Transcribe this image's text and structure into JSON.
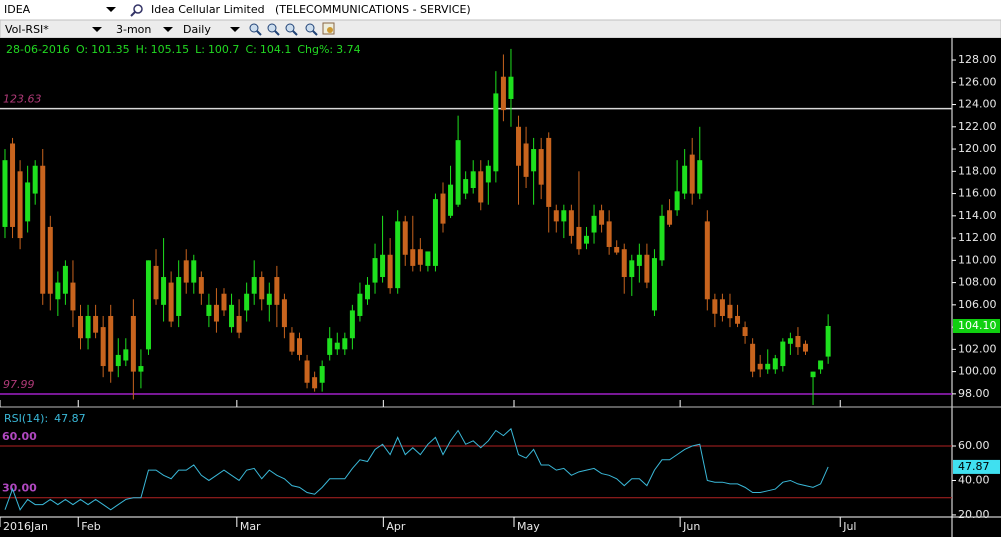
{
  "toolbar": {
    "symbol": "IDEA",
    "company": "Idea Cellular Limited",
    "sector": "(TELECOMMUNICATIONS - SERVICE)",
    "study": "Vol-RSI*",
    "range": "3-mon",
    "interval": "Daily"
  },
  "chart_data": [
    {
      "type": "candlestick",
      "header": {
        "date": "28-06-2016",
        "fields": [
          {
            "label": "O:",
            "value": 101.35
          },
          {
            "label": "H:",
            "value": 105.15
          },
          {
            "label": "L:",
            "value": 100.7
          },
          {
            "label": "C:",
            "value": 104.1
          },
          {
            "label": "Chg%:",
            "value": 3.74
          }
        ]
      },
      "open": [
        113,
        120.5,
        118,
        113.5,
        116,
        118.5,
        113,
        106.5,
        107,
        108,
        105,
        103,
        105,
        104,
        105,
        100.5,
        101,
        105,
        100,
        102,
        109.5,
        106,
        108,
        105,
        110,
        108,
        108.5,
        105,
        106,
        107,
        104,
        105,
        105.5,
        107,
        108.5,
        106,
        108.5,
        106.5,
        103.5,
        103,
        101,
        99.5,
        99,
        101.5,
        102,
        102,
        103,
        105,
        106.5,
        108,
        108.5,
        110.5,
        107.5,
        113.5,
        111,
        111,
        109.5,
        109.5,
        116,
        114,
        115,
        116,
        116.5,
        118,
        117,
        118,
        126.5,
        124.5,
        122,
        120.5,
        118,
        120,
        121,
        114.5,
        113.5,
        114.5,
        113,
        111.5,
        112.5,
        114.5,
        113.5,
        111.2,
        111,
        108.5,
        109.5,
        110.5,
        105.5,
        110,
        114.5,
        114.5,
        116,
        119.5,
        116,
        113.5,
        106.5,
        106.5,
        106,
        105,
        104,
        102.5,
        100.7,
        100.2,
        100.2,
        100.5,
        102.5,
        103.2,
        102.5,
        99.5,
        100.2,
        101.35
      ],
      "high": [
        120,
        121,
        119,
        118.5,
        119,
        120,
        114,
        109,
        110,
        110,
        106,
        106,
        106,
        105,
        106,
        103,
        103,
        106.5,
        102,
        110,
        111,
        112,
        109,
        110,
        111,
        110.5,
        109,
        107,
        107.5,
        107.5,
        107,
        106.5,
        108,
        110,
        109,
        108,
        109.5,
        107,
        104,
        103.5,
        101.5,
        100,
        101,
        104,
        103.5,
        103.5,
        106,
        108,
        108.5,
        111.5,
        114,
        112,
        114.5,
        114,
        114,
        112,
        110.5,
        116,
        117,
        118.5,
        123,
        118,
        119,
        119,
        119,
        127,
        128.5,
        129,
        123,
        122,
        121,
        121,
        121.5,
        115,
        115,
        115,
        118,
        113,
        115,
        115,
        114.5,
        111.8,
        111.5,
        110.5,
        111.5,
        111.5,
        111,
        115,
        115.5,
        119,
        120,
        121,
        122,
        114.5,
        107,
        107,
        107,
        106,
        104.5,
        103,
        101.5,
        102,
        101.5,
        103,
        103.5,
        104,
        102.8,
        100,
        101,
        105.15
      ],
      "low": [
        112,
        112,
        111,
        112.5,
        115,
        106,
        105.5,
        105,
        106,
        104,
        102,
        102,
        103,
        99.5,
        99,
        99.5,
        100.5,
        97.5,
        98.5,
        101.5,
        106,
        104.5,
        104,
        104,
        107,
        107,
        106,
        104,
        103.5,
        105,
        103.5,
        103,
        104.5,
        106,
        105.5,
        104.5,
        104,
        103,
        101.5,
        101,
        98.5,
        98.2,
        98.2,
        101,
        101.5,
        101.5,
        102,
        104.5,
        106,
        107,
        108,
        107,
        107,
        109.5,
        109,
        109,
        109,
        109,
        112.5,
        113.8,
        114.8,
        115.5,
        116,
        114.5,
        115,
        117,
        122.5,
        122,
        115,
        116.5,
        115,
        115.5,
        112.5,
        112.5,
        112,
        111.5,
        110.5,
        111,
        111.5,
        112.5,
        110.5,
        110.5,
        107,
        106.8,
        108,
        107.5,
        105,
        109.5,
        113,
        114,
        115.5,
        115,
        115.5,
        105.5,
        104,
        104.5,
        104,
        104,
        102.5,
        99.5,
        99.5,
        99.8,
        99.8,
        100,
        101.5,
        101.5,
        101.5,
        97,
        99.8,
        100.7
      ],
      "close": [
        119,
        113,
        112,
        117,
        118.5,
        107,
        107,
        108,
        109.5,
        105.5,
        103,
        105,
        103.5,
        100.5,
        100,
        101.5,
        102,
        100,
        100.5,
        110,
        106.5,
        108.5,
        104.5,
        108.5,
        108,
        110,
        107,
        106,
        104.5,
        105.5,
        106,
        103.5,
        107,
        108.5,
        106.5,
        107,
        106,
        104,
        101.8,
        101.5,
        99,
        98.5,
        100.5,
        103,
        102.6,
        103,
        105.5,
        107,
        107.8,
        110.2,
        110.5,
        107.5,
        113.5,
        110.5,
        109.5,
        109.6,
        110.8,
        115.5,
        113.3,
        116.8,
        120.8,
        117.3,
        118,
        115.2,
        118.5,
        125,
        123.5,
        126.5,
        118.5,
        117.5,
        120,
        116.8,
        114.8,
        113.5,
        114.5,
        112.2,
        111,
        112.2,
        114,
        113.2,
        111.2,
        110.7,
        108.5,
        110,
        110.5,
        108,
        110.2,
        114,
        113.2,
        116.2,
        118.5,
        116,
        119,
        106.5,
        105.2,
        105,
        104.8,
        104.3,
        103.2,
        100,
        100.2,
        100.7,
        101.2,
        102.7,
        103,
        102.2,
        101.8,
        100,
        101,
        104.1
      ],
      "up_color": "#1ee01e",
      "down_color": "#c8641e",
      "xlim": [
        -0.66,
        125.4
      ],
      "ylim": [
        97,
        129.8
      ],
      "yticks": [
        {
          "value": 98,
          "label": "98.00"
        },
        {
          "value": 100,
          "label": "100.00"
        },
        {
          "value": 102,
          "label": "102.00"
        },
        {
          "value": 104,
          "label": "104.00"
        },
        {
          "value": 106,
          "label": "106.00"
        },
        {
          "value": 108,
          "label": "108.00"
        },
        {
          "value": 110,
          "label": "110.00"
        },
        {
          "value": 112,
          "label": "112.00"
        },
        {
          "value": 114,
          "label": "114.00"
        },
        {
          "value": 116,
          "label": "116.00"
        },
        {
          "value": 118,
          "label": "118.00"
        },
        {
          "value": 120,
          "label": "120.00"
        },
        {
          "value": 122,
          "label": "122.00"
        },
        {
          "value": 124,
          "label": "124.00"
        },
        {
          "value": 126,
          "label": "126.00"
        },
        {
          "value": 128,
          "label": "128.00"
        }
      ],
      "levels": [
        {
          "value": 123.63,
          "label": "123.63",
          "color": "#d8d8d8"
        },
        {
          "value": 97.99,
          "label": "97.99",
          "color": "#a020c8"
        }
      ],
      "last": {
        "value": 104.1,
        "label": "104.10",
        "color": "#10d010"
      }
    },
    {
      "type": "line",
      "series": [
        {
          "name": "RSI(14):",
          "color": "#3ab8d8",
          "values": [
            23,
            35,
            23,
            29,
            26,
            26,
            29,
            26,
            29,
            26,
            29,
            26,
            29,
            26,
            23,
            26,
            29,
            30,
            30,
            46,
            46,
            43,
            41,
            46,
            46,
            49,
            43,
            40,
            43,
            46,
            43,
            40,
            46,
            47,
            41,
            46,
            43,
            41,
            37,
            36,
            33,
            32,
            36,
            41,
            41,
            41,
            47,
            52,
            51,
            58,
            61,
            55,
            65,
            55,
            59,
            55,
            61,
            65,
            55,
            63,
            69,
            61,
            63,
            59,
            63,
            69,
            66,
            70,
            55,
            53,
            58,
            49,
            49,
            46,
            47,
            43,
            45,
            46,
            47,
            44,
            43,
            41,
            37,
            41,
            41,
            37,
            46,
            52,
            52,
            55,
            58,
            60,
            61,
            40,
            39,
            39,
            38,
            38,
            36,
            33,
            33,
            34,
            35,
            39,
            40,
            38,
            37,
            36,
            38,
            47.87
          ]
        }
      ],
      "xlim": [
        -0.66,
        125.4
      ],
      "ylim": [
        18.8,
        80.9
      ],
      "yticks": [
        {
          "value": 20,
          "label": "20.00"
        },
        {
          "value": 40,
          "label": "40.00"
        },
        {
          "value": 60,
          "label": "60.00"
        }
      ],
      "levels": [
        {
          "value": 60,
          "label": "60.00",
          "color": "#b22222"
        },
        {
          "value": 30,
          "label": "30.00",
          "color": "#b22222"
        }
      ],
      "xticks": [
        {
          "value": -0.66,
          "label": "2016Jan"
        },
        {
          "value": 9.7,
          "label": "Feb"
        },
        {
          "value": 30.7,
          "label": "Mar"
        },
        {
          "value": 50.1,
          "label": "Apr"
        },
        {
          "value": 67.4,
          "label": "May"
        },
        {
          "value": 89.4,
          "label": "Jun"
        },
        {
          "value": 110.6,
          "label": "Jul"
        }
      ]
    }
  ]
}
